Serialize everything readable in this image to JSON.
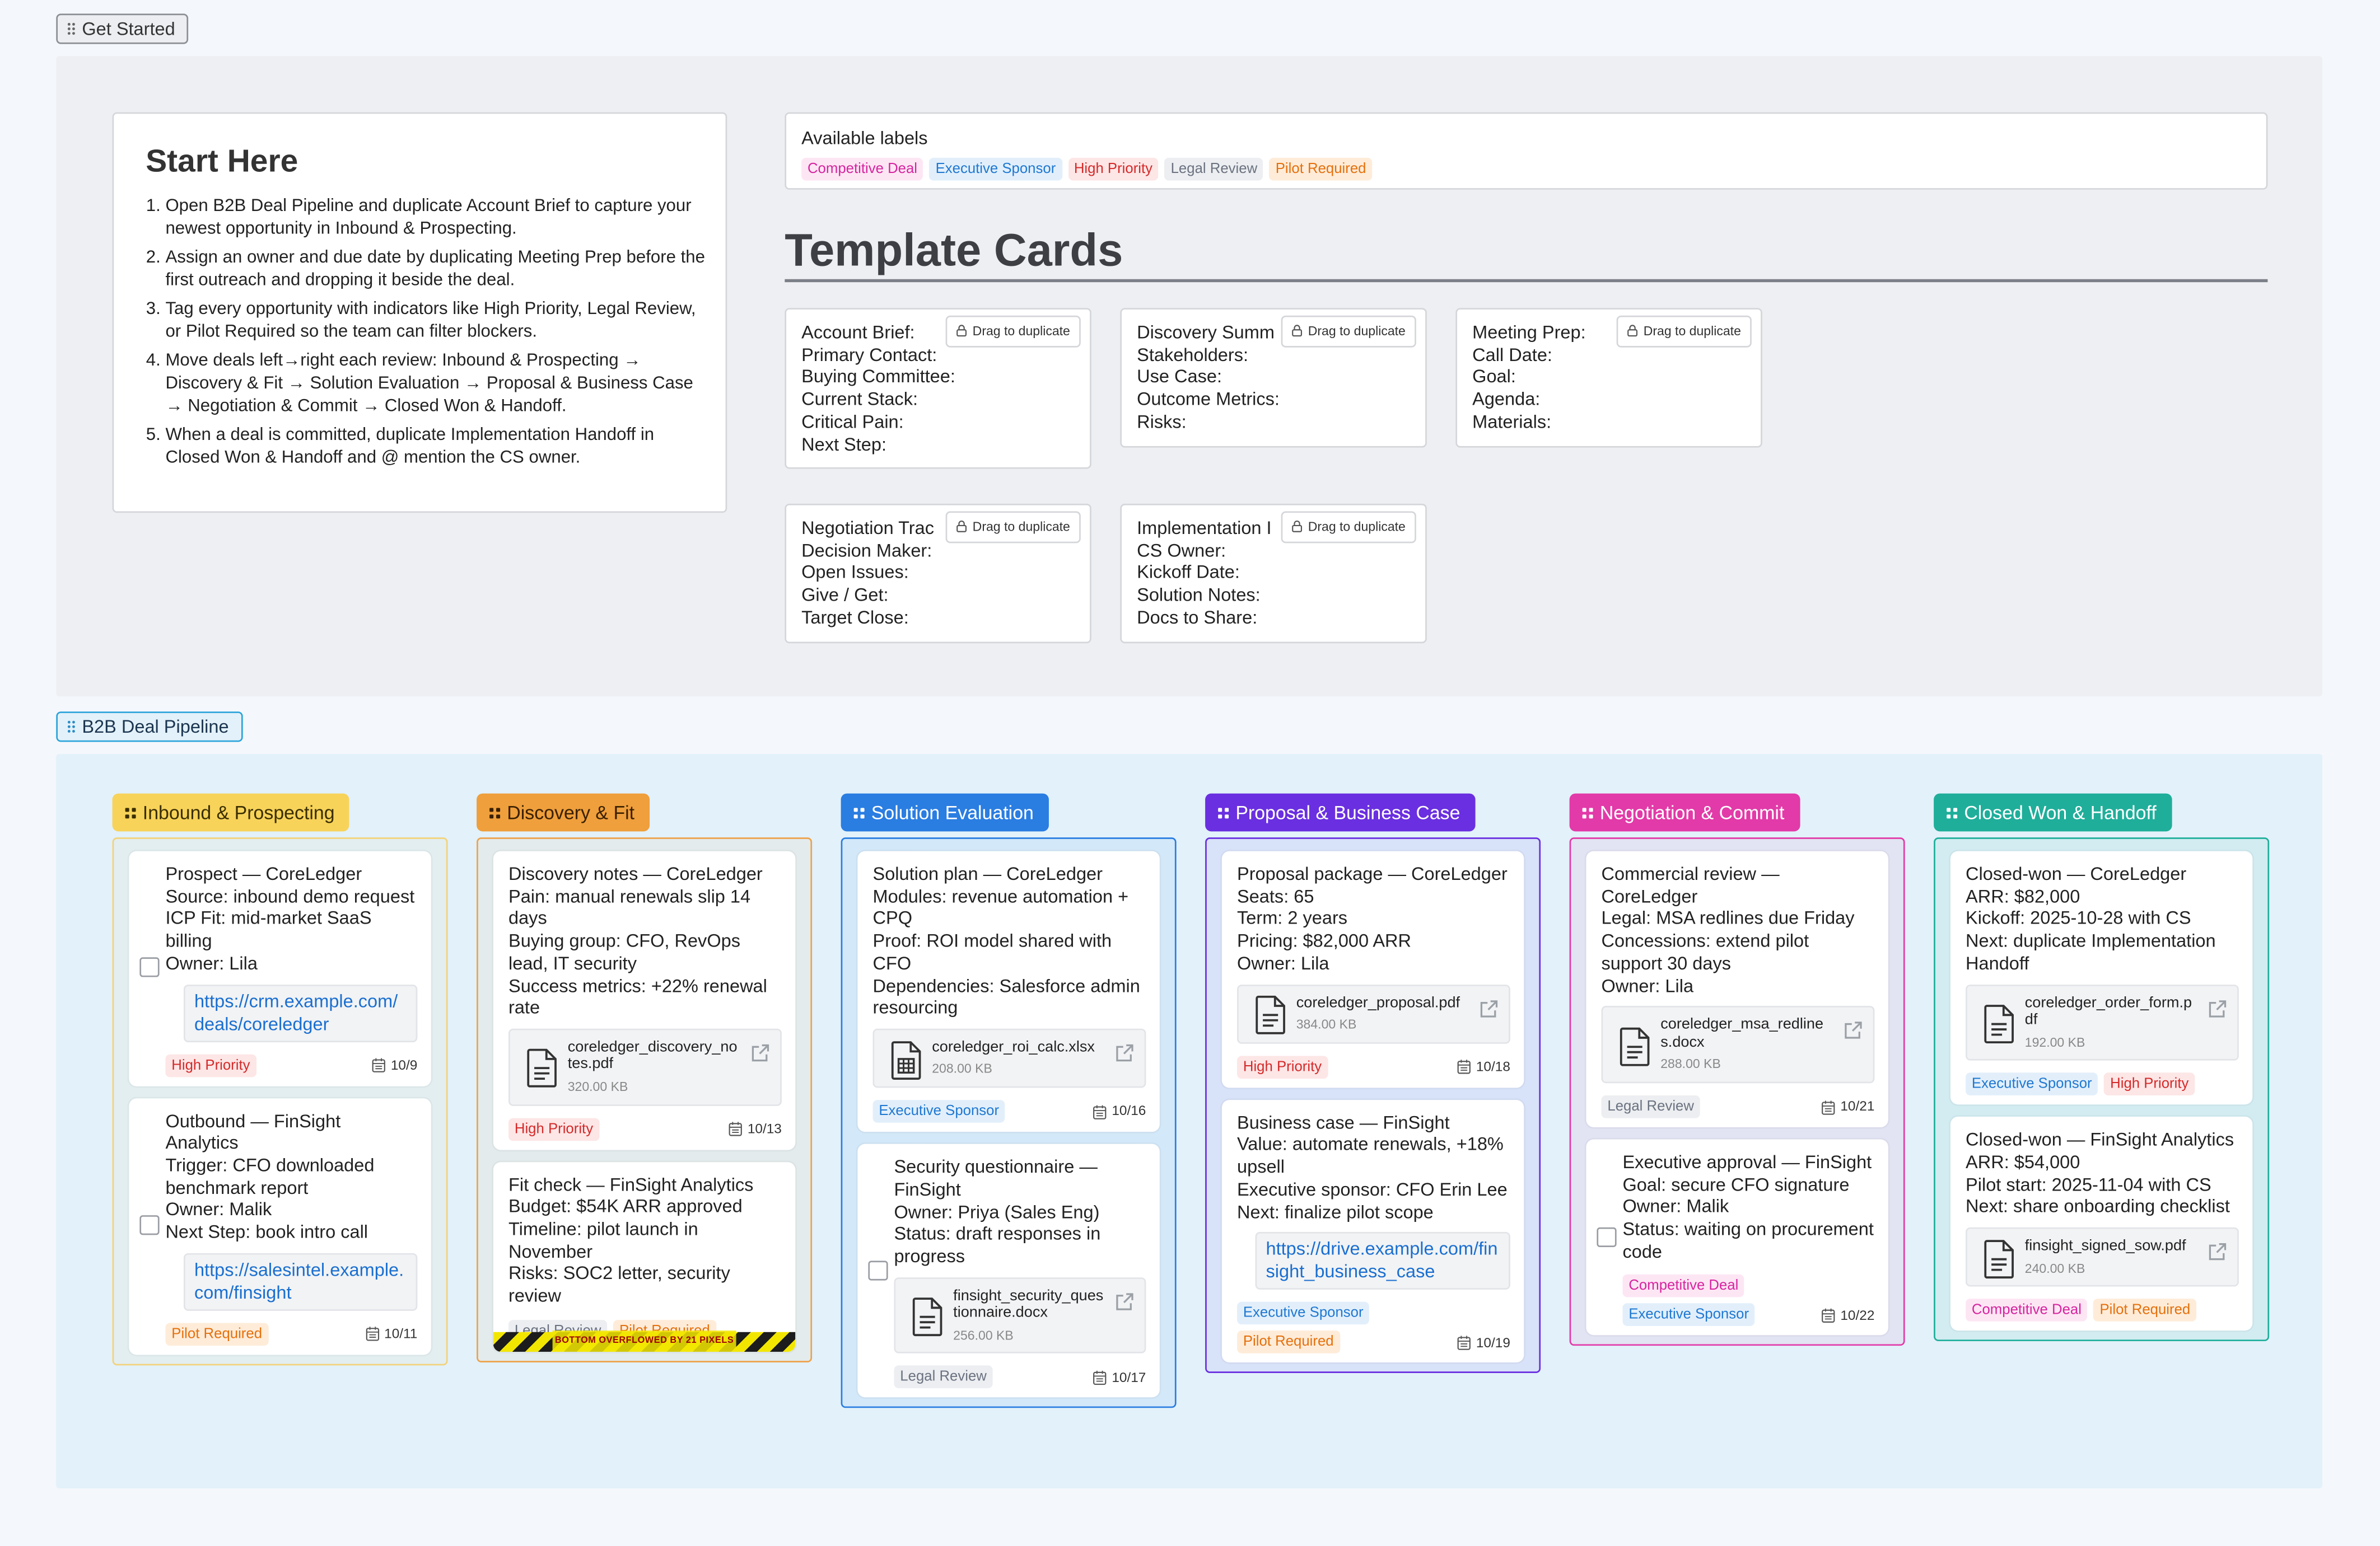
{
  "get_started": {
    "tab": "Get Started",
    "start_here": {
      "title": "Start Here",
      "steps": [
        "Open B2B Deal Pipeline and duplicate Account Brief to capture your newest opportunity in Inbound & Prospecting.",
        "Assign an owner and due date by duplicating Meeting Prep before the first outreach and dropping it beside the deal.",
        "Tag every opportunity with indicators like High Priority, Legal Review, or Pilot Required so the team can filter blockers.",
        "Move deals left→right each review: Inbound & Prospecting → Discovery & Fit → Solution Evaluation → Proposal & Business Case → Negotiation & Commit → Closed Won & Handoff.",
        "When a deal is committed, duplicate Implementation Handoff in Closed Won & Handoff and @ mention the CS owner."
      ]
    },
    "labels": {
      "title": "Available labels",
      "items": [
        {
          "text": "Competitive Deal",
          "color": "#d6249f",
          "background": "#fde6f4"
        },
        {
          "text": "Executive Sponsor",
          "color": "#1f78d1",
          "background": "#e2effb"
        },
        {
          "text": "High Priority",
          "color": "#d42a2a",
          "background": "#fde6e6"
        },
        {
          "text": "Legal Review",
          "color": "#6b7280",
          "background": "#eceef1"
        },
        {
          "text": "Pilot Required",
          "color": "#e5700c",
          "background": "#feecd9"
        }
      ]
    },
    "templates": {
      "title": "Template Cards",
      "cards": [
        {
          "action": "Drag to duplicate",
          "lines": [
            "Account Brief:",
            "Primary Contact:",
            "Buying Committee:",
            "Current Stack:",
            "Critical Pain:",
            "Next Step:"
          ]
        },
        {
          "action": "Drag to duplicate",
          "lines": [
            "Discovery Summ",
            "Stakeholders:",
            "Use Case:",
            "Outcome Metrics:",
            "Risks:"
          ]
        },
        {
          "action": "Drag to duplicate",
          "lines": [
            "Meeting Prep:",
            "Call Date:",
            "Goal:",
            "Agenda:",
            "Materials:"
          ]
        },
        {
          "action": "Drag to duplicate",
          "lines": [
            "Negotiation Trac",
            "Decision Maker:",
            "Open Issues:",
            "Give / Get:",
            "Target Close:"
          ]
        },
        {
          "action": "Drag to duplicate",
          "lines": [
            "Implementation I",
            "CS Owner:",
            "Kickoff Date:",
            "Solution Notes:",
            "Docs to Share:"
          ]
        }
      ]
    }
  },
  "pipeline": {
    "tab": "B2B Deal Pipeline",
    "columns": [
      {
        "name": "Inbound & Prospecting",
        "color": "#f7d35a",
        "text_color": "#3a2e00",
        "border": "#f3d27a",
        "cards": [
          {
            "checkbox": true,
            "lines": [
              "Prospect — CoreLedger",
              "Source: inbound demo request",
              "ICP Fit: mid-market SaaS billing",
              "Owner: Lila"
            ],
            "link": "https://crm.example.com/deals/coreledger",
            "tags": [
              "High Priority"
            ],
            "date": "10/9"
          },
          {
            "checkbox": true,
            "lines": [
              "Outbound — FinSight Analytics",
              "Trigger: CFO downloaded benchmark report",
              "Owner: Malik",
              "Next Step: book intro call"
            ],
            "link": "https://salesintel.example.com/finsight",
            "tags": [
              "Pilot Required"
            ],
            "date": "10/11"
          }
        ]
      },
      {
        "name": "Discovery & Fit",
        "color": "#ef9f3c",
        "text_color": "#3a2000",
        "border": "#eea24a",
        "cards": [
          {
            "checkbox": false,
            "lines": [
              "Discovery notes — CoreLedger",
              "Pain: manual renewals slip 14 days",
              "Buying group: CFO, RevOps lead, IT security",
              "Success metrics: +22% renewal rate"
            ],
            "file": {
              "name": "coreledger_discovery_notes.pdf",
              "size": "320.00 KB"
            },
            "tags": [
              "High Priority"
            ],
            "date": "10/13"
          },
          {
            "checkbox": false,
            "lines": [
              "Fit check — FinSight Analytics",
              "Budget: $54K ARR approved",
              "Timeline: pilot launch in November",
              "Risks: SOC2 letter, security review"
            ],
            "tags": [
              "Legal Review",
              "Pilot Required"
            ],
            "overflow": "BOTTOM OVERFLOWED BY 21 PIXELS"
          }
        ]
      },
      {
        "name": "Solution Evaluation",
        "color": "#2a7de1",
        "text_color": "#ffffff",
        "border": "#2a7de1",
        "cards": [
          {
            "checkbox": false,
            "lines": [
              "Solution plan — CoreLedger",
              "Modules: revenue automation + CPQ",
              "Proof: ROI model shared with CFO",
              "Dependencies: Salesforce admin resourcing"
            ],
            "file": {
              "name": "coreledger_roi_calc.xlsx",
              "size": "208.00 KB",
              "kind": "sheet"
            },
            "tags": [
              "Executive Sponsor"
            ],
            "date": "10/16"
          },
          {
            "checkbox": true,
            "lines": [
              "Security questionnaire — FinSight",
              "Owner: Priya (Sales Eng)",
              "Status: draft responses in progress"
            ],
            "file": {
              "name": "finsight_security_questionnaire.docx",
              "size": "256.00 KB"
            },
            "tags": [
              "Legal Review"
            ],
            "date": "10/17"
          }
        ]
      },
      {
        "name": "Proposal & Business Case",
        "color": "#6a2fe0",
        "text_color": "#ffffff",
        "border": "#6a2fe0",
        "cards": [
          {
            "checkbox": false,
            "lines": [
              "Proposal package — CoreLedger",
              "Seats: 65",
              "Term: 2 years",
              "Pricing: $82,000 ARR",
              "Owner: Lila"
            ],
            "file": {
              "name": "coreledger_proposal.pdf",
              "size": "384.00 KB"
            },
            "tags": [
              "High Priority"
            ],
            "date": "10/18"
          },
          {
            "checkbox": false,
            "lines": [
              "Business case — FinSight",
              "Value: automate renewals, +18% upsell",
              "Executive sponsor: CFO Erin Lee",
              "Next: finalize pilot scope"
            ],
            "link": "https://drive.example.com/finsight_business_case",
            "tags": [
              "Executive Sponsor",
              "Pilot Required"
            ],
            "date": "10/19"
          }
        ]
      },
      {
        "name": "Negotiation & Commit",
        "color": "#e23aa8",
        "text_color": "#ffffff",
        "border": "#e23aa8",
        "cards": [
          {
            "checkbox": false,
            "lines": [
              "Commercial review — CoreLedger",
              "Legal: MSA redlines due Friday",
              "Concessions: extend pilot support 30 days",
              "Owner: Lila"
            ],
            "file": {
              "name": "coreledger_msa_redlines.docx",
              "size": "288.00 KB"
            },
            "tags": [
              "Legal Review"
            ],
            "date": "10/21"
          },
          {
            "checkbox": true,
            "lines": [
              "Executive approval — FinSight",
              "Goal: secure CFO signature",
              "Owner: Malik",
              "Status: waiting on procurement code"
            ],
            "tags": [
              "Competitive Deal",
              "Executive Sponsor"
            ],
            "date": "10/22"
          }
        ]
      },
      {
        "name": "Closed Won & Handoff",
        "color": "#1fae9a",
        "text_color": "#ffffff",
        "border": "#1fae9a",
        "cards": [
          {
            "checkbox": false,
            "lines": [
              "Closed-won — CoreLedger",
              "ARR: $82,000",
              "Kickoff: 2025-10-28 with CS",
              "Next: duplicate Implementation Handoff"
            ],
            "file": {
              "name": "coreledger_order_form.pdf",
              "size": "192.00 KB"
            },
            "tags": [
              "Executive Sponsor",
              "High Priority"
            ]
          },
          {
            "checkbox": false,
            "lines": [
              "Closed-won — FinSight Analytics",
              "ARR: $54,000",
              "Pilot start: 2025-11-04 with CS",
              "Next: share onboarding checklist"
            ],
            "file": {
              "name": "finsight_signed_sow.pdf",
              "size": "240.00 KB"
            },
            "tags": [
              "Competitive Deal",
              "Pilot Required"
            ]
          }
        ]
      }
    ]
  }
}
